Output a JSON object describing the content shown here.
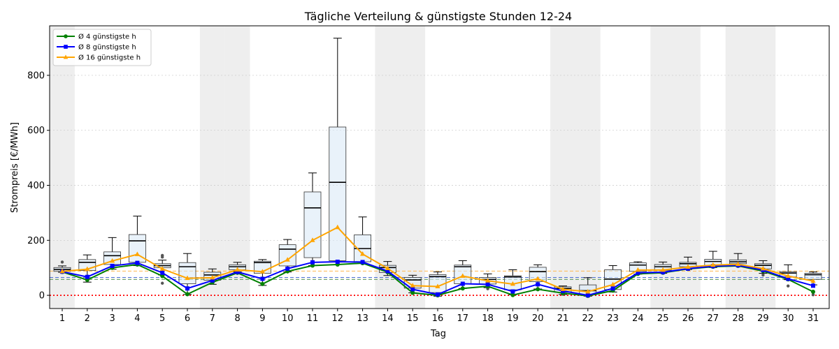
{
  "chart_data": {
    "type": "box",
    "title": "Tägliche Verteilung & günstigste Stunden 12-24",
    "xlabel": "Tag",
    "ylabel": "Strompreis [€/MWh]",
    "ylim": [
      -48,
      980
    ],
    "yticks": [
      0,
      200,
      400,
      600,
      800
    ],
    "grid": "y-dashed",
    "legend_position": "top-left",
    "weekend_days": [
      1,
      7,
      8,
      14,
      15,
      21,
      22,
      25,
      26,
      28,
      29
    ],
    "colors": {
      "box_fill": "#dbe9f6",
      "box_edge": "#000000",
      "median": "#000000",
      "weekend_shade": "#d9d9d9",
      "zero_line": "#ff0000",
      "series_4": "#008000",
      "series_8": "#0000ff",
      "series_16": "#ffa500",
      "avg_4": "#4d8c4d",
      "avg_8": "#4d6fd1",
      "avg_16": "#ffb84d"
    },
    "boxes": [
      {
        "day": 1,
        "q1": 87,
        "median": 94,
        "q3": 101,
        "whisker_low": 84,
        "whisker_high": 107,
        "outliers": [
          121
        ]
      },
      {
        "day": 2,
        "q1": 90,
        "median": 120,
        "q3": 130,
        "whisker_low": 48,
        "whisker_high": 147,
        "outliers": []
      },
      {
        "day": 3,
        "q1": 112,
        "median": 144,
        "q3": 158,
        "whisker_low": 95,
        "whisker_high": 210,
        "outliers": []
      },
      {
        "day": 4,
        "q1": 120,
        "median": 198,
        "q3": 221,
        "whisker_low": 108,
        "whisker_high": 288,
        "outliers": []
      },
      {
        "day": 5,
        "q1": 100,
        "median": 108,
        "q3": 115,
        "whisker_low": 74,
        "whisker_high": 128,
        "outliers": [
          139,
          145,
          44
        ]
      },
      {
        "day": 6,
        "q1": 42,
        "median": 104,
        "q3": 119,
        "whisker_low": 3,
        "whisker_high": 152,
        "outliers": []
      },
      {
        "day": 7,
        "q1": 55,
        "median": 74,
        "q3": 84,
        "whisker_low": 40,
        "whisker_high": 96,
        "outliers": []
      },
      {
        "day": 8,
        "q1": 93,
        "median": 104,
        "q3": 111,
        "whisker_low": 85,
        "whisker_high": 120,
        "outliers": []
      },
      {
        "day": 9,
        "q1": 80,
        "median": 119,
        "q3": 124,
        "whisker_low": 36,
        "whisker_high": 130,
        "outliers": []
      },
      {
        "day": 10,
        "q1": 107,
        "median": 168,
        "q3": 184,
        "whisker_low": 85,
        "whisker_high": 203,
        "outliers": []
      },
      {
        "day": 11,
        "q1": 137,
        "median": 318,
        "q3": 376,
        "whisker_low": 108,
        "whisker_high": 445,
        "outliers": []
      },
      {
        "day": 12,
        "q1": 126,
        "median": 411,
        "q3": 612,
        "whisker_low": 112,
        "whisker_high": 935,
        "outliers": []
      },
      {
        "day": 13,
        "q1": 122,
        "median": 170,
        "q3": 220,
        "whisker_low": 116,
        "whisker_high": 285,
        "outliers": []
      },
      {
        "day": 14,
        "q1": 83,
        "median": 101,
        "q3": 109,
        "whisker_low": 72,
        "whisker_high": 123,
        "outliers": []
      },
      {
        "day": 15,
        "q1": 26,
        "median": 56,
        "q3": 65,
        "whisker_low": 9,
        "whisker_high": 73,
        "outliers": []
      },
      {
        "day": 16,
        "q1": 10,
        "median": 68,
        "q3": 75,
        "whisker_low": -3,
        "whisker_high": 85,
        "outliers": []
      },
      {
        "day": 17,
        "q1": 42,
        "median": 104,
        "q3": 110,
        "whisker_low": 25,
        "whisker_high": 126,
        "outliers": []
      },
      {
        "day": 18,
        "q1": 41,
        "median": 58,
        "q3": 65,
        "whisker_low": 28,
        "whisker_high": 78,
        "outliers": [
          24
        ]
      },
      {
        "day": 19,
        "q1": 20,
        "median": 67,
        "q3": 71,
        "whisker_low": 2,
        "whisker_high": 93,
        "outliers": []
      },
      {
        "day": 20,
        "q1": 50,
        "median": 86,
        "q3": 102,
        "whisker_low": 23,
        "whisker_high": 111,
        "outliers": []
      },
      {
        "day": 21,
        "q1": 11,
        "median": 25,
        "q3": 31,
        "whisker_low": 3,
        "whisker_high": 34,
        "outliers": [
          4
        ]
      },
      {
        "day": 22,
        "q1": 2,
        "median": 17,
        "q3": 38,
        "whisker_low": -3,
        "whisker_high": 64,
        "outliers": []
      },
      {
        "day": 23,
        "q1": 21,
        "median": 59,
        "q3": 93,
        "whisker_low": 12,
        "whisker_high": 108,
        "outliers": []
      },
      {
        "day": 24,
        "q1": 87,
        "median": 110,
        "q3": 118,
        "whisker_low": 77,
        "whisker_high": 122,
        "outliers": []
      },
      {
        "day": 25,
        "q1": 91,
        "median": 104,
        "q3": 112,
        "whisker_low": 80,
        "whisker_high": 121,
        "outliers": []
      },
      {
        "day": 26,
        "q1": 104,
        "median": 115,
        "q3": 120,
        "whisker_low": 94,
        "whisker_high": 139,
        "outliers": []
      },
      {
        "day": 27,
        "q1": 109,
        "median": 123,
        "q3": 131,
        "whisker_low": 101,
        "whisker_high": 160,
        "outliers": []
      },
      {
        "day": 28,
        "q1": 115,
        "median": 122,
        "q3": 129,
        "whisker_low": 106,
        "whisker_high": 152,
        "outliers": []
      },
      {
        "day": 29,
        "q1": 96,
        "median": 109,
        "q3": 115,
        "whisker_low": 80,
        "whisker_high": 126,
        "outliers": [
          74
        ]
      },
      {
        "day": 30,
        "q1": 67,
        "median": 81,
        "q3": 86,
        "whisker_low": 57,
        "whisker_high": 111,
        "outliers": [
          34
        ]
      },
      {
        "day": 31,
        "q1": 58,
        "median": 75,
        "q3": 80,
        "whisker_low": 38,
        "whisker_high": 85,
        "outliers": [
          2
        ]
      }
    ],
    "series": [
      {
        "name": "Ø 4 günstigste h",
        "color": "#008000",
        "marker": "circle",
        "values": [
          85,
          56,
          100,
          112,
          70,
          4,
          47,
          82,
          41,
          87,
          108,
          112,
          117,
          84,
          9,
          0,
          25,
          33,
          1,
          22,
          8,
          -2,
          17,
          78,
          82,
          96,
          104,
          107,
          88,
          58,
          13
        ]
      },
      {
        "name": "Ø 8 günstigste h",
        "color": "#0000ff",
        "marker": "square",
        "values": [
          86,
          67,
          107,
          118,
          82,
          25,
          54,
          85,
          60,
          97,
          120,
          122,
          121,
          88,
          22,
          3,
          42,
          40,
          14,
          40,
          16,
          0,
          25,
          82,
          84,
          97,
          106,
          109,
          92,
          60,
          35
        ]
      },
      {
        "name": "Ø 16 günstigste h",
        "color": "#ffa500",
        "marker": "triangle",
        "values": [
          87,
          95,
          125,
          149,
          96,
          62,
          64,
          93,
          86,
          129,
          200,
          247,
          150,
          98,
          35,
          32,
          70,
          53,
          41,
          60,
          22,
          13,
          39,
          92,
          92,
          103,
          110,
          113,
          97,
          70,
          52
        ]
      }
    ],
    "avg_lines": [
      {
        "series": "Ø 4 günstigste h",
        "value": 58,
        "color": "#4d8c4d"
      },
      {
        "series": "Ø 8 günstigste h",
        "value": 65,
        "color": "#4d6fd1"
      },
      {
        "series": "Ø 16 günstigste h",
        "value": 88,
        "color": "#ffb84d"
      }
    ],
    "zero_line": 0
  }
}
